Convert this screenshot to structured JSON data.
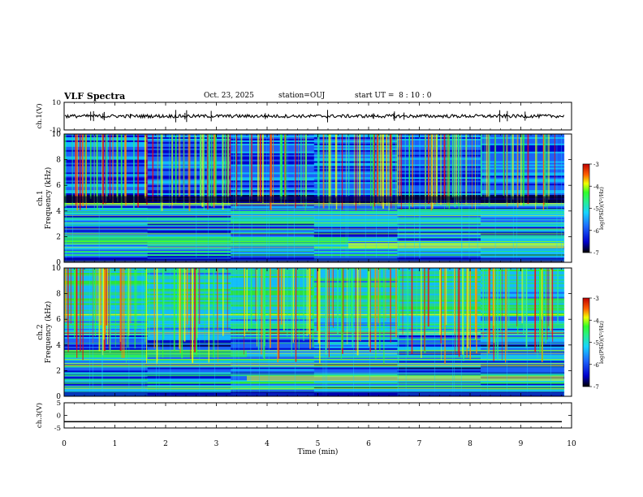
{
  "header": {
    "title": "VLF Spectra",
    "date": "Oct. 23, 2025",
    "station": "station=OUJ",
    "start_ut": "start UT =  8 : 10 : 0"
  },
  "colors": {
    "colormap": [
      "#000040",
      "#0000cc",
      "#1e6cff",
      "#16d4ff",
      "#28f08c",
      "#32ff28",
      "#f0ff00",
      "#ff8c00",
      "#ff0000",
      "#aa0000"
    ]
  },
  "chart_data": [
    {
      "type": "line",
      "name": "ch1-waveform",
      "title": "VLF Spectra",
      "ylabel": "ch.1(V)",
      "ylim": [
        -10,
        10
      ],
      "yticks": [
        "10",
        "-10"
      ],
      "xlim": [
        0,
        10
      ],
      "baseline_value": 0,
      "noise_amplitude": 1.2
    },
    {
      "type": "heatmap",
      "name": "ch1-spectrogram",
      "ylabel_line1": "ch.1",
      "ylabel_line2": "Frequency (kHz)",
      "ylim": [
        0,
        10
      ],
      "yticks": [
        "0",
        "2",
        "4",
        "6",
        "8",
        "10"
      ],
      "xlim": [
        0,
        10
      ],
      "data_end_minute": 9.85,
      "color_range": [
        -7,
        -3
      ],
      "colorbar_label": "log(PSD)(V²/Hz)",
      "colorbar_ticks": [
        "-3",
        "-4",
        "-5",
        "-6",
        "-7"
      ],
      "band_shift_minute": 5.6,
      "bright_band_khz": [
        1.7,
        1.3
      ]
    },
    {
      "type": "heatmap",
      "name": "ch2-spectrogram",
      "ylabel_line1": "ch.2",
      "ylabel_line2": "Frequency (kHz)",
      "ylim": [
        0,
        10
      ],
      "yticks": [
        "0",
        "2",
        "4",
        "6",
        "8",
        "10"
      ],
      "xlim": [
        0,
        10
      ],
      "data_end_minute": 9.85,
      "color_range": [
        -7,
        -3
      ],
      "colorbar_label": "log(PSD)(V²/Hz)",
      "colorbar_ticks": [
        "-3",
        "-4",
        "-5",
        "-6",
        "-7"
      ],
      "band_shift_minute": 3.6,
      "bright_band_khz": [
        3.3,
        1.4
      ]
    },
    {
      "type": "line",
      "name": "ch3-waveform",
      "ylabel": "ch.3(V)",
      "ylim": [
        -5,
        5
      ],
      "yticks": [
        "5",
        "0",
        "-5"
      ],
      "xlim": [
        0,
        10
      ],
      "xlabel": "Time (min)",
      "xticks": [
        "0",
        "1",
        "2",
        "3",
        "4",
        "5",
        "6",
        "7",
        "8",
        "9",
        "10"
      ],
      "baseline_value": -2.5
    }
  ]
}
